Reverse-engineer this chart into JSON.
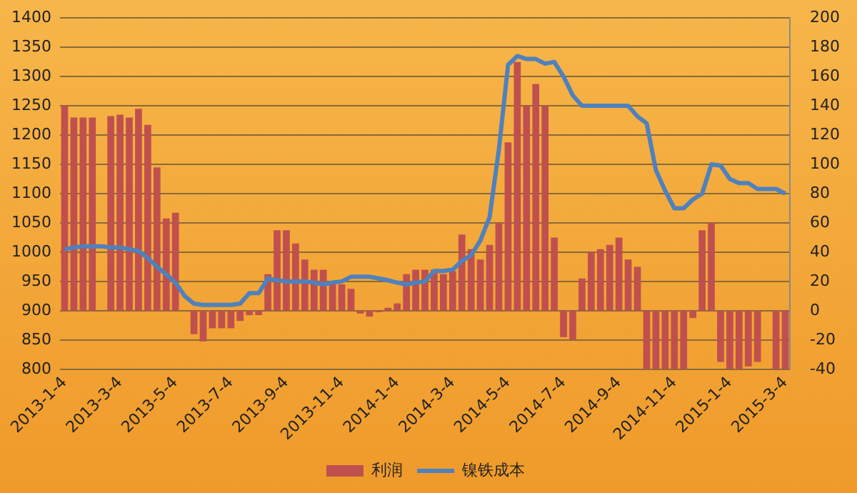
{
  "chart_data": {
    "type": "bar",
    "categories": [
      "2013-1-4",
      null,
      null,
      null,
      null,
      null,
      "2013-3-4",
      null,
      null,
      null,
      null,
      null,
      "2013-5-4",
      null,
      null,
      null,
      null,
      null,
      "2013-7-4",
      null,
      null,
      null,
      null,
      null,
      "2013-9-4",
      null,
      null,
      null,
      null,
      null,
      "2013-11-4",
      null,
      null,
      null,
      null,
      null,
      "2014-1-4",
      null,
      null,
      null,
      null,
      null,
      "2014-3-4",
      null,
      null,
      null,
      null,
      null,
      "2014-5-4",
      null,
      null,
      null,
      null,
      null,
      "2014-7-4",
      null,
      null,
      null,
      null,
      null,
      "2014-9-4",
      null,
      null,
      null,
      null,
      null,
      "2014-11-4",
      null,
      null,
      null,
      null,
      null,
      "2015-1-4",
      null,
      null,
      null,
      null,
      null,
      "2015-3-4"
    ],
    "series": [
      {
        "name": "利润",
        "axis": "y2",
        "color": "#c0504d",
        "values": [
          140,
          132,
          132,
          132,
          null,
          133,
          134,
          132,
          138,
          127,
          98,
          63,
          67,
          0,
          -16,
          -21,
          -12,
          -12,
          -12,
          -7,
          -3,
          -3,
          25,
          55,
          55,
          46,
          35,
          28,
          28,
          20,
          18,
          15,
          -2,
          -4,
          -1,
          2,
          5,
          25,
          28,
          28,
          28,
          25,
          27,
          52,
          42,
          35,
          45,
          60,
          115,
          170,
          140,
          155,
          140,
          50,
          -18,
          -20,
          22,
          40,
          42,
          45,
          50,
          35,
          30,
          -40,
          -40,
          -40,
          -40,
          -40,
          -5,
          55,
          60,
          -35,
          -40,
          -40,
          -38,
          -35,
          null,
          -40,
          -40
        ]
      },
      {
        "name": "镍铁成本",
        "type": "line",
        "axis": "y",
        "color": "#4f81bd",
        "values": [
          1005,
          1008,
          1010,
          1010,
          1010,
          1008,
          1008,
          1005,
          1002,
          990,
          975,
          962,
          948,
          925,
          912,
          910,
          910,
          910,
          910,
          912,
          930,
          930,
          955,
          952,
          950,
          950,
          950,
          948,
          945,
          948,
          950,
          958,
          958,
          958,
          955,
          952,
          948,
          945,
          948,
          950,
          968,
          968,
          970,
          985,
          995,
          1020,
          1060,
          1175,
          1320,
          1335,
          1330,
          1330,
          1322,
          1325,
          1300,
          1268,
          1250,
          1250,
          1250,
          1250,
          1250,
          1250,
          1232,
          1220,
          1140,
          1105,
          1075,
          1075,
          1090,
          1100,
          1150,
          1148,
          1125,
          1118,
          1118,
          1108,
          1108,
          1108,
          1100
        ]
      }
    ],
    "ylim": [
      800,
      1400
    ],
    "yticks": [
      800,
      850,
      900,
      950,
      1000,
      1050,
      1100,
      1150,
      1200,
      1250,
      1300,
      1350,
      1400
    ],
    "y2lim": [
      -40,
      200
    ],
    "y2ticks": [
      -40,
      -20,
      0,
      20,
      40,
      60,
      80,
      100,
      120,
      140,
      160,
      180,
      200
    ],
    "grid": "y",
    "legend": "bottom",
    "marker": "none"
  }
}
